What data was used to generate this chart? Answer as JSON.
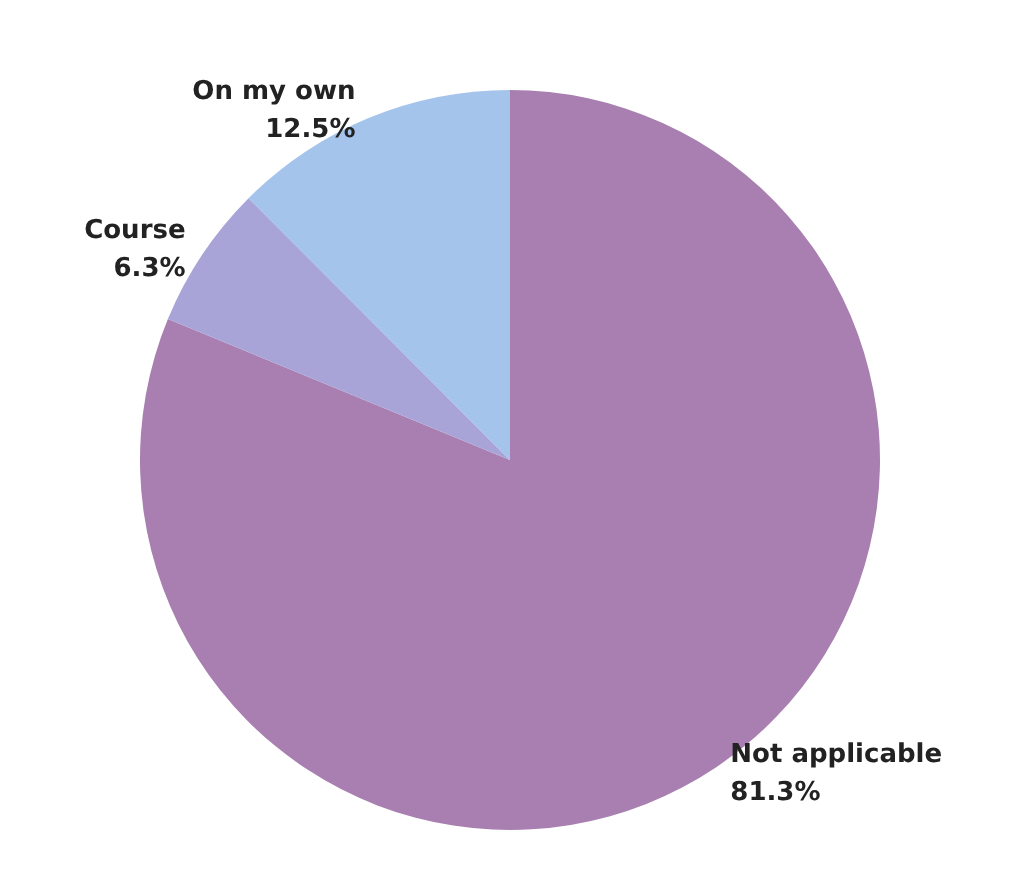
{
  "chart_data": {
    "type": "pie",
    "categories": [
      "Not applicable",
      "Course",
      "On my own"
    ],
    "values": [
      81.3,
      6.3,
      12.5
    ],
    "colors": [
      "#a87fb0",
      "#a8a4d8",
      "#a4c4ec"
    ],
    "value_labels": [
      "81.3%",
      "6.3%",
      "12.5%"
    ]
  }
}
